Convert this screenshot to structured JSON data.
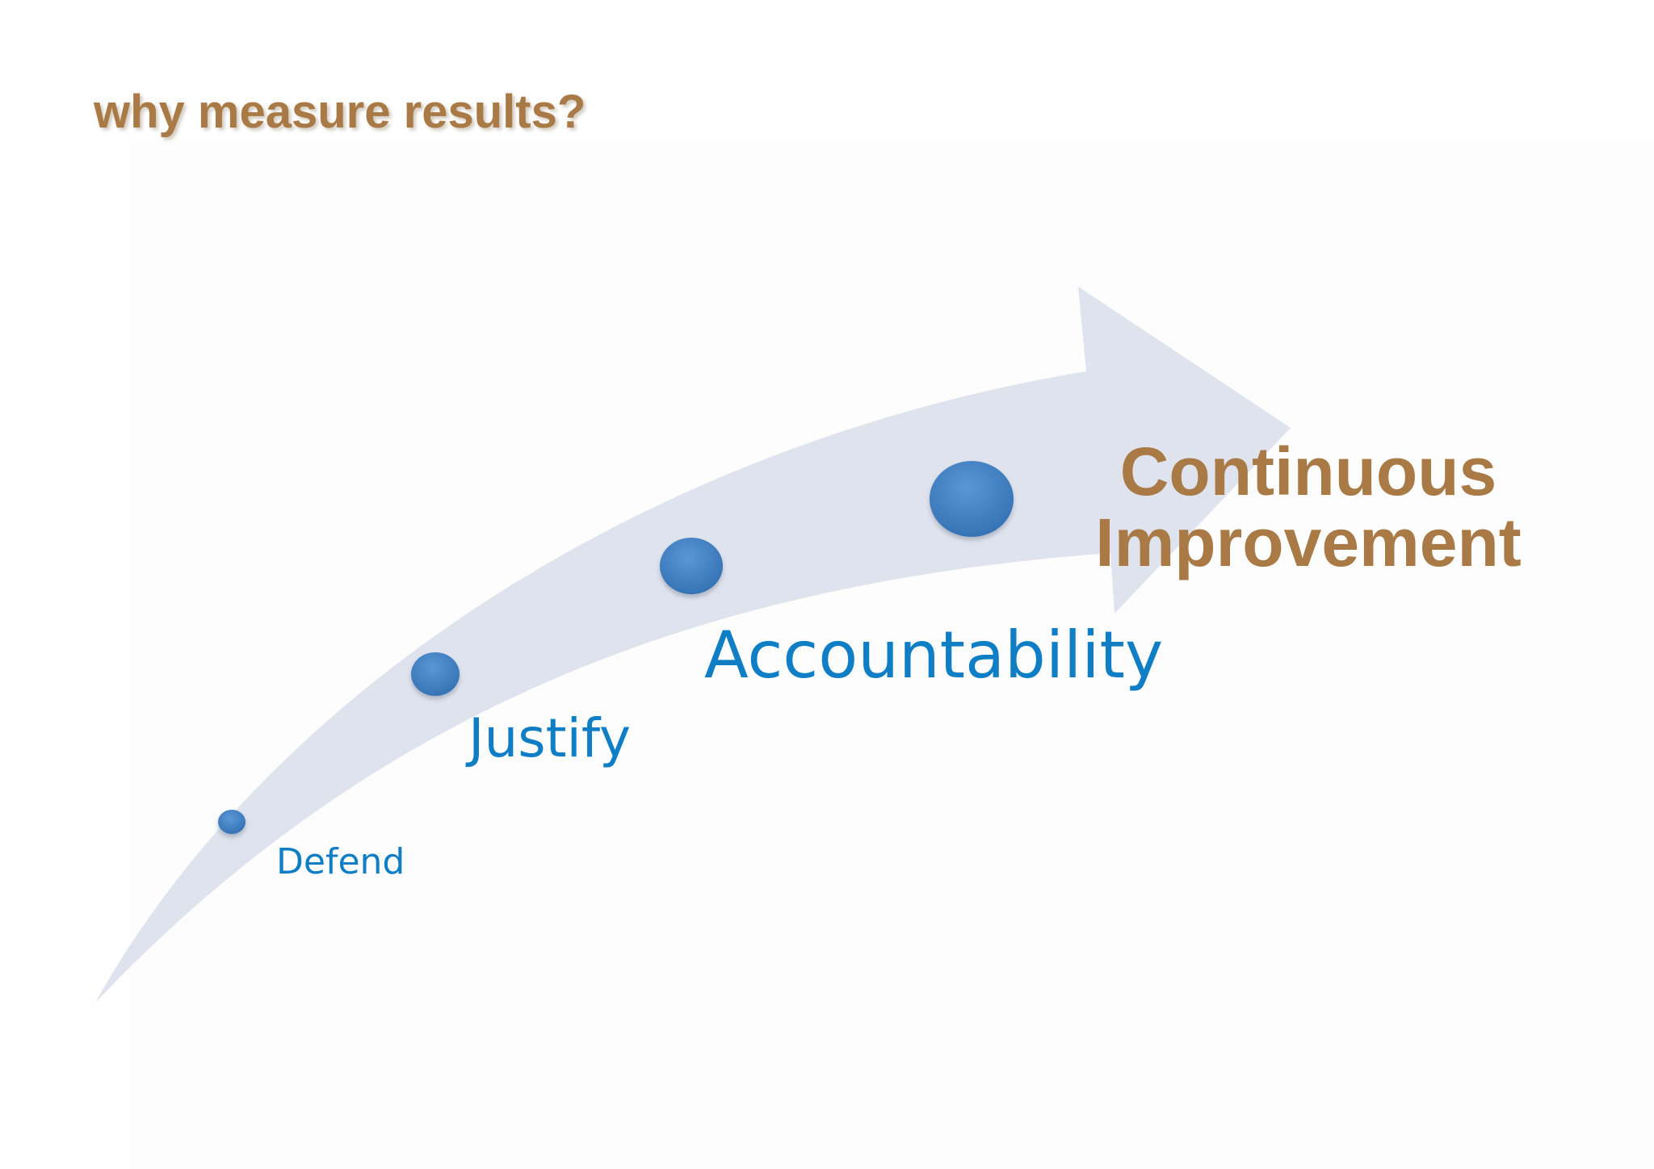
{
  "title": "why measure results?",
  "goal": {
    "line1": "Continuous",
    "line2": "Improvement"
  },
  "steps": [
    {
      "label": "Defend"
    },
    {
      "label": "Justify"
    },
    {
      "label": "Accountability"
    }
  ],
  "colors": {
    "title": "#a97a45",
    "goal": "#a97a45",
    "step_label": "#0f7ec5",
    "arrow_fill": "#dde2ec",
    "dot_fill": "#3f7fc1"
  }
}
